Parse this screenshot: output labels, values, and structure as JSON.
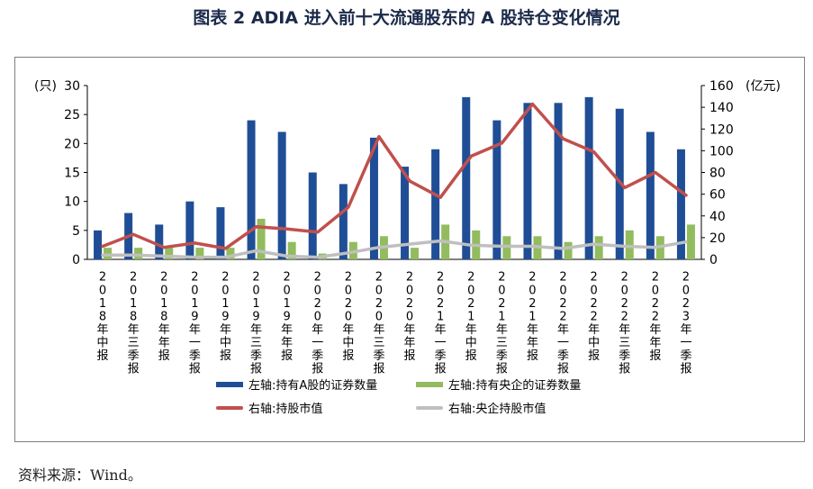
{
  "title": "图表 2 ADIA 进入前十大流通股东的 A 股持仓变化情况",
  "source": "资料来源：Wind。",
  "colors": {
    "bar_a": "#1f4e96",
    "bar_soe": "#92bc5d",
    "line_value": "#c0504d",
    "line_soe": "#bfbfbf"
  },
  "chart_data": {
    "type": "bar",
    "categories": [
      "2018年中报",
      "2018年三季报",
      "2018年年报",
      "2019年一季报",
      "2019年中报",
      "2019年三季报",
      "2019年年报",
      "2020年一季报",
      "2020年中报",
      "2020年三季报",
      "2020年年报",
      "2021年一季报",
      "2021年中报",
      "2021年三季报",
      "2021年年报",
      "2022年一季报",
      "2022年中报",
      "2022年三季报",
      "2022年年报",
      "2023年一季报"
    ],
    "left_axis": {
      "unit": "(只)",
      "ylim": [
        0,
        30
      ],
      "ticks": [
        "0",
        "5",
        "10",
        "15",
        "20",
        "25",
        "30"
      ]
    },
    "right_axis": {
      "unit": "(亿元)",
      "ylim": [
        0,
        160
      ],
      "ticks": [
        "0",
        "20",
        "40",
        "60",
        "80",
        "100",
        "120",
        "140",
        "160"
      ]
    },
    "series": [
      {
        "name": "左轴:持有A股的证券数量",
        "kind": "bar",
        "axis": "left",
        "values": [
          5,
          8,
          6,
          10,
          9,
          24,
          22,
          15,
          13,
          21,
          16,
          19,
          28,
          24,
          27,
          27,
          28,
          26,
          22,
          19
        ]
      },
      {
        "name": "左轴:持有央企的证券数量",
        "kind": "bar",
        "axis": "left",
        "values": [
          2,
          2,
          2,
          2,
          2,
          7,
          3,
          1,
          3,
          4,
          2,
          6,
          5,
          4,
          4,
          3,
          4,
          5,
          4,
          6
        ]
      },
      {
        "name": "右轴:持股市值",
        "kind": "line",
        "axis": "right",
        "values": [
          12,
          23,
          11,
          15,
          10,
          30,
          28,
          25,
          48,
          113,
          72,
          57,
          95,
          107,
          143,
          111,
          99,
          66,
          80,
          59
        ]
      },
      {
        "name": "右轴:央企持股市值",
        "kind": "line",
        "axis": "right",
        "values": [
          4,
          4,
          3,
          2,
          2,
          8,
          3,
          2,
          6,
          11,
          14,
          17,
          13,
          12,
          12,
          10,
          14,
          12,
          11,
          16
        ]
      }
    ],
    "grid": false,
    "legend_position": "bottom"
  }
}
